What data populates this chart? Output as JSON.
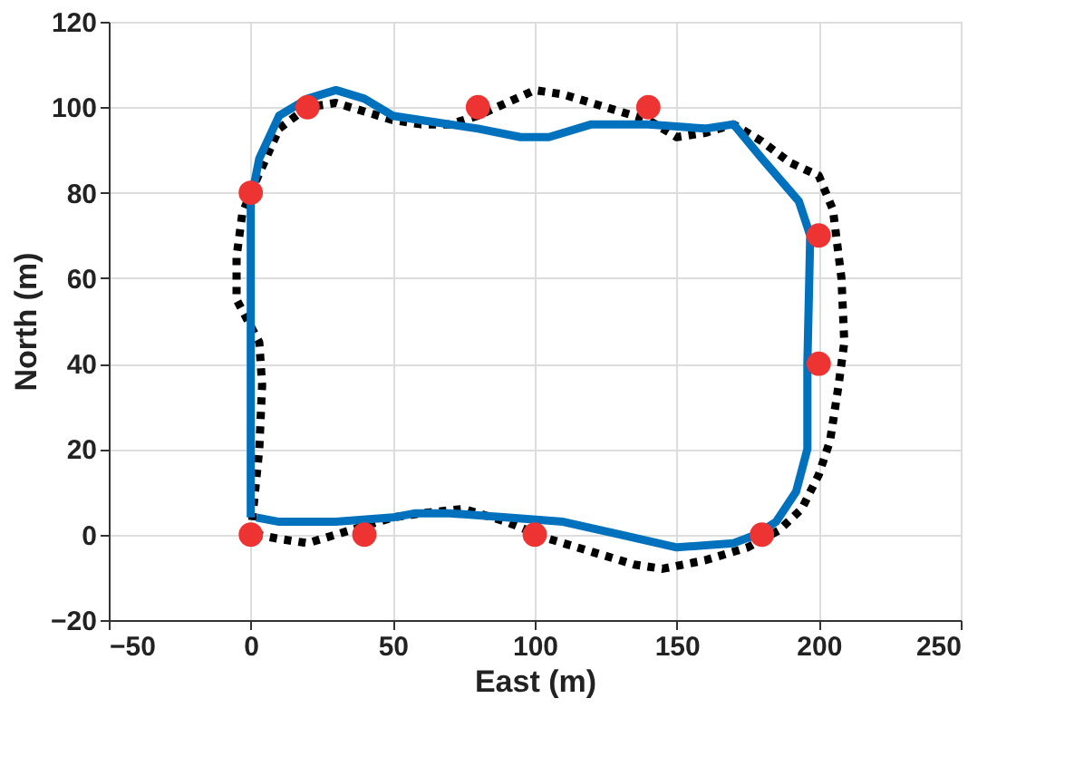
{
  "chart_data": {
    "type": "line",
    "xlabel": "East (m)",
    "ylabel": "North (m)",
    "xlim": [
      -50,
      250
    ],
    "ylim": [
      -20,
      120
    ],
    "xticks": [
      -50,
      0,
      50,
      100,
      150,
      200,
      250
    ],
    "yticks": [
      -20,
      0,
      20,
      40,
      60,
      80,
      100,
      120
    ],
    "grid": true,
    "series": [
      {
        "type": "line",
        "color": "#000000",
        "line_style": "dotted",
        "x": [
          0,
          3,
          4,
          3,
          -5,
          -5,
          -3,
          0,
          10,
          20,
          30,
          40,
          50,
          60,
          70,
          80,
          90,
          100,
          110,
          120,
          130,
          140,
          150,
          160,
          170,
          180,
          190,
          200,
          205,
          208,
          209,
          207,
          204,
          200,
          194,
          186,
          175,
          160,
          145,
          135,
          120,
          105,
          90,
          75,
          60,
          50,
          40,
          30,
          20,
          10,
          2
        ],
        "values": [
          0,
          20,
          35,
          45,
          55,
          65,
          75,
          80,
          95,
          100,
          101,
          99,
          97,
          96,
          96,
          98,
          101,
          104,
          103,
          101,
          99,
          97,
          93,
          94,
          96,
          92,
          87,
          84,
          76,
          60,
          45,
          35,
          22,
          14,
          6,
          1,
          -3,
          -6,
          -8,
          -7,
          -4,
          -1,
          3,
          6,
          5,
          4,
          2,
          0,
          -2,
          -1,
          0
        ]
      },
      {
        "type": "line",
        "color": "#0072bd",
        "line_style": "solid",
        "x": [
          0,
          0,
          3,
          10,
          20,
          30,
          40,
          50,
          60,
          80,
          95,
          105,
          120,
          140,
          160,
          170,
          180,
          193,
          197,
          196,
          196,
          192,
          185,
          178,
          170,
          150,
          130,
          110,
          90,
          70,
          58,
          50,
          30,
          10,
          2
        ],
        "values": [
          4,
          78,
          88,
          98,
          102,
          104,
          102,
          98,
          97,
          95,
          93,
          93,
          96,
          96,
          95,
          96,
          88,
          78,
          70,
          40,
          20,
          10,
          3,
          0,
          -2,
          -3,
          0,
          3,
          4,
          5,
          5,
          4,
          3,
          3,
          4
        ]
      },
      {
        "type": "scatter",
        "color": "#ee3333",
        "marker": "circle",
        "x": [
          0,
          40,
          100,
          180,
          200,
          200,
          140,
          80,
          20,
          0
        ],
        "values": [
          0,
          0,
          0,
          0,
          40,
          70,
          100,
          100,
          100,
          80
        ]
      }
    ]
  }
}
